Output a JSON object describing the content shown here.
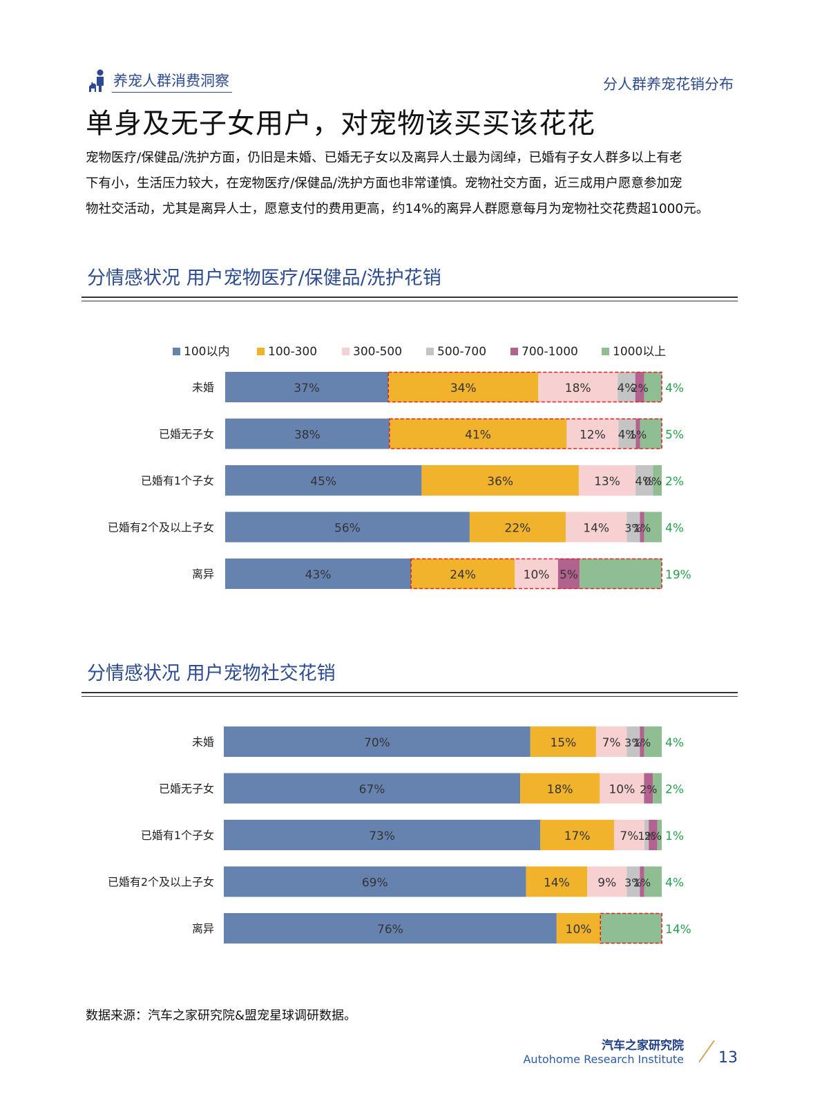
{
  "header": {
    "left_title": "养宠人群消费洞察",
    "right_title": "分人群养宠花销分布",
    "main_title": "单身及无子女用户，对宠物该买买该花花",
    "intro_lines": [
      "宠物医疗/保健品/洗护方面，仍旧是未婚、已婚无子女以及离异人士最为阔绰，已婚有子女人群多以上有老",
      "下有小，生活压力较大，在宠物医疗/保健品/洗护方面也非常谨慎。宠物社交方面，近三成用户愿意参加宠",
      "物社交活动，尤其是离异人士，愿意支付的费用更高，约14%的离异人群愿意每月为宠物社交花费超1000元。"
    ]
  },
  "colors": {
    "c100": "#6683b0",
    "c300": "#f1b22c",
    "c500": "#f7d1d1",
    "c700": "#c4c4c4",
    "c1000": "#b2628e",
    "cabove": "#8fbe93",
    "last_label": "#23a24b",
    "highlight": "#e02020"
  },
  "chart_data": [
    {
      "type": "bar",
      "orientation": "horizontal-stacked-100",
      "title": "分情感状况  用户宠物医疗/保健品/洗护花销",
      "legend": [
        "100以内",
        "100-300",
        "300-500",
        "500-700",
        "700-1000",
        "1000以上"
      ],
      "categories": [
        "未婚",
        "已婚无子女",
        "已婚有1个子女",
        "已婚有2个及以上子女",
        "离异"
      ],
      "series": [
        {
          "name": "100以内",
          "values": [
            37,
            38,
            45,
            56,
            43
          ]
        },
        {
          "name": "100-300",
          "values": [
            34,
            41,
            36,
            22,
            24
          ]
        },
        {
          "name": "300-500",
          "values": [
            18,
            12,
            13,
            14,
            10
          ]
        },
        {
          "name": "500-700",
          "values": [
            4,
            4,
            4,
            3,
            0
          ]
        },
        {
          "name": "700-1000",
          "values": [
            2,
            1,
            0,
            1,
            5
          ]
        },
        {
          "name": "1000以上",
          "values": [
            4,
            5,
            2,
            4,
            19
          ]
        }
      ],
      "labels": [
        [
          "37%",
          "34%",
          "18%",
          "4%",
          "2%",
          "4%"
        ],
        [
          "38%",
          "41%",
          "12%",
          "4%",
          "1%",
          "5%"
        ],
        [
          "45%",
          "36%",
          "13%",
          "4%",
          "0%",
          "2%"
        ],
        [
          "56%",
          "22%",
          "14%",
          "3%",
          "1%",
          "4%"
        ],
        [
          "43%",
          "24%",
          "10%",
          "",
          "5%",
          "19%"
        ]
      ],
      "highlight_rows": [
        0,
        1,
        4
      ]
    },
    {
      "type": "bar",
      "orientation": "horizontal-stacked-100",
      "title": "分情感状况  用户宠物社交花销",
      "legend": [
        "100以内",
        "100-300",
        "300-500",
        "500-700",
        "700-1000",
        "1000以上"
      ],
      "categories": [
        "未婚",
        "已婚无子女",
        "已婚有1个子女",
        "已婚有2个及以上子女",
        "离异"
      ],
      "series": [
        {
          "name": "100以内",
          "values": [
            70,
            67,
            73,
            69,
            76
          ]
        },
        {
          "name": "100-300",
          "values": [
            15,
            18,
            17,
            14,
            10
          ]
        },
        {
          "name": "300-500",
          "values": [
            7,
            10,
            7,
            9,
            0
          ]
        },
        {
          "name": "500-700",
          "values": [
            3,
            0,
            1,
            3,
            0
          ]
        },
        {
          "name": "700-1000",
          "values": [
            1,
            2,
            2,
            1,
            0
          ]
        },
        {
          "name": "1000以上",
          "values": [
            4,
            2,
            1,
            4,
            14
          ]
        }
      ],
      "labels": [
        [
          "70%",
          "15%",
          "7%",
          "3%",
          "1%",
          "4%"
        ],
        [
          "67%",
          "18%",
          "10%",
          "",
          "2%",
          "2%"
        ],
        [
          "73%",
          "17%",
          "7%",
          "1%",
          "2%",
          "1%"
        ],
        [
          "69%",
          "14%",
          "9%",
          "3%",
          "1%",
          "4%"
        ],
        [
          "76%",
          "10%",
          "",
          "",
          "",
          "14%"
        ]
      ],
      "highlight_rows": [
        4
      ]
    }
  ],
  "footer": {
    "source": "数据来源：汽车之家研究院&盟宠星球调研数据。",
    "org_cn": "汽车之家研究院",
    "org_en": "Autohome Research Institute",
    "page": "13"
  }
}
